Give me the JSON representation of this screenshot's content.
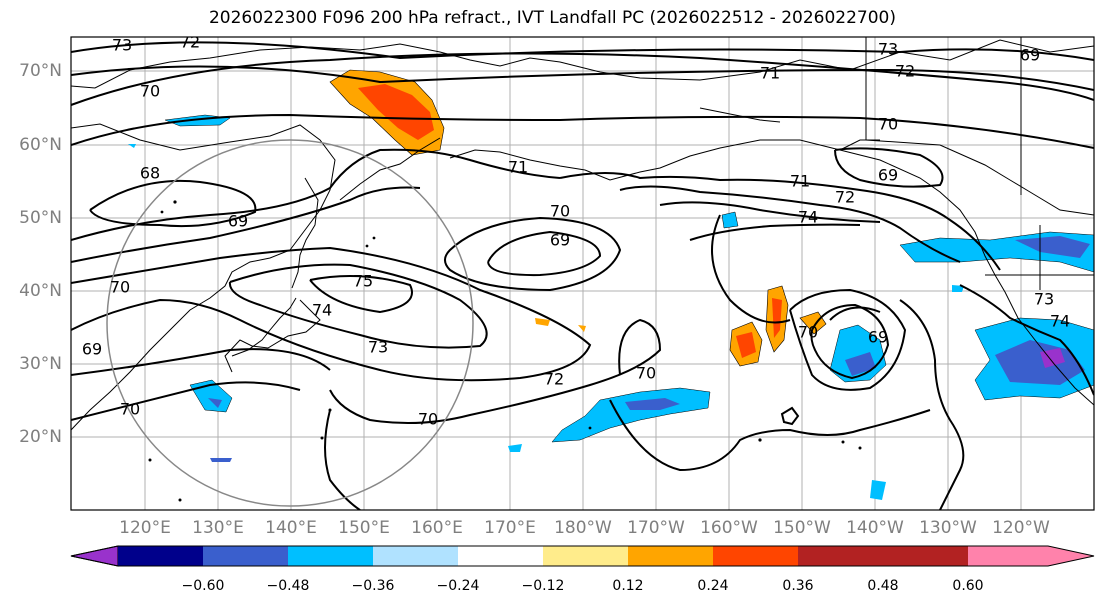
{
  "title": "2026022300 F096 200 hPa refract., IVT Landfall PC (2026022512 - 2026022700)",
  "lat_labels": [
    "70°N",
    "60°N",
    "50°N",
    "40°N",
    "30°N",
    "20°N"
  ],
  "lon_labels": [
    "120°E",
    "130°E",
    "140°E",
    "150°E",
    "160°E",
    "170°E",
    "180°W",
    "170°W",
    "160°W",
    "150°W",
    "140°W",
    "130°W",
    "120°W"
  ],
  "contour_labels": [
    "73",
    "72",
    "70",
    "68",
    "69",
    "71",
    "70",
    "69",
    "75",
    "74",
    "73",
    "72",
    "70",
    "70",
    "69",
    "70",
    "73",
    "72",
    "71",
    "70",
    "71",
    "72",
    "74",
    "69",
    "70",
    "69",
    "73",
    "69",
    "70",
    "74"
  ],
  "colorbar": {
    "ticks": [
      "−0.60",
      "−0.48",
      "−0.36",
      "−0.24",
      "−0.12",
      "0.12",
      "0.24",
      "0.36",
      "0.48",
      "0.60"
    ],
    "colors": [
      "#9932cc",
      "#00008b",
      "#3a5fcd",
      "#00bfff",
      "#b0e2ff",
      "#ffffff",
      "#ffec8b",
      "#ffa500",
      "#ff4500",
      "#b22222",
      "#ff82ab"
    ]
  }
}
